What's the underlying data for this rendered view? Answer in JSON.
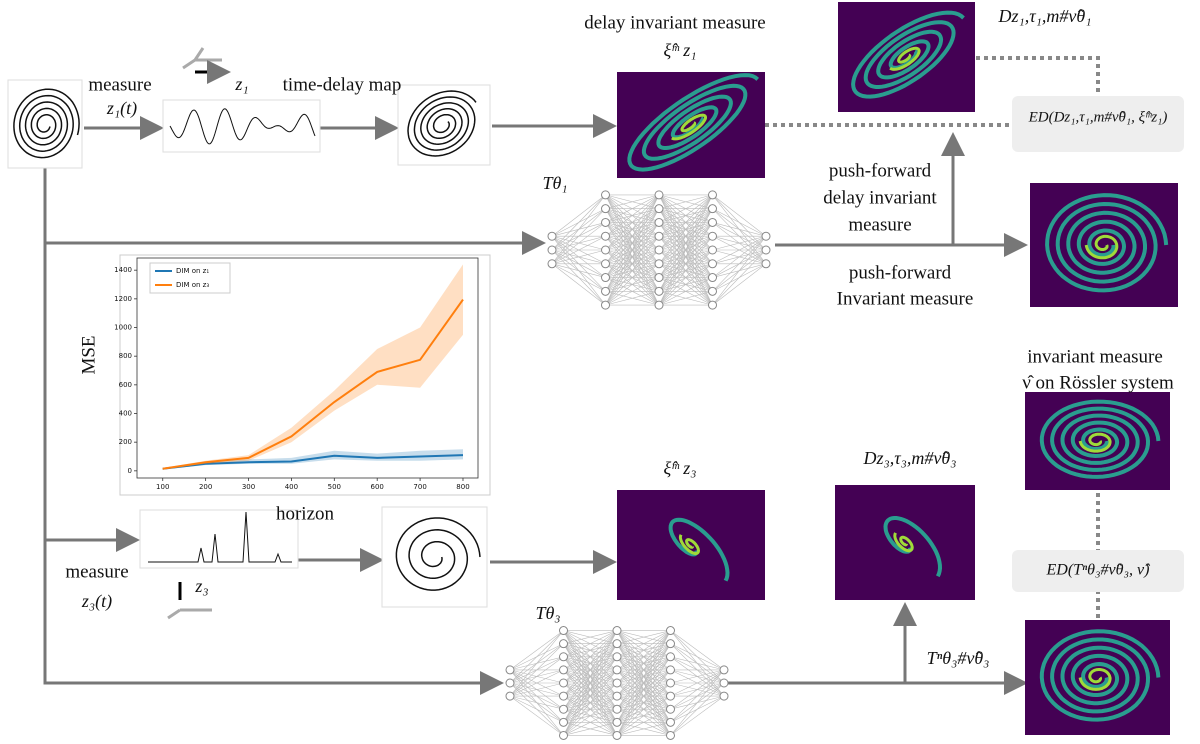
{
  "labels": {
    "measure_z1": "measure",
    "z1_t": "z₁(t)",
    "z1_axis": "z₁",
    "time_delay_map": "time-delay map",
    "delay_invariant_measure": "delay invariant measure",
    "xi_z1": "ξ̂ᵐ z₁",
    "pushforward_z1": "Dz₁,τ₁,m#ν̂θ₁",
    "ed_top": "ED(Dz₁,τ₁,m#ν̂θ₁, ξ̂ᵐz₁)",
    "t_theta1": "Tθ₁",
    "pf_delay_1": "push-forward",
    "pf_delay_2": "delay invariant",
    "pf_delay_3": "measure",
    "pf_inv_1": "push-forward",
    "pf_inv_2": "Invariant measure",
    "inv_measure_1": "invariant measure",
    "inv_measure_2": "ν̂ on Rössler system",
    "xi_z3": "ξ̂ᵐ z₃",
    "pushforward_z3": "Dz₃,τ₃,m#ν̂θ₃",
    "ed_bottom": "ED(Tⁿθ₃#ν̂θ₃, ν̂)",
    "measure_z3": "measure",
    "z3_t": "z₃(t)",
    "z3_axis": "z₃",
    "t_theta3": "Tθ₃",
    "tn_theta3": "Tⁿθ₃#ν̂θ₃"
  },
  "chart_data": {
    "type": "line",
    "ylabel": "MSE",
    "xlabel": "horizon",
    "x": [
      100,
      200,
      300,
      400,
      500,
      600,
      700,
      800
    ],
    "series": [
      {
        "name": "DIM on z₁",
        "color": "#1f77b4",
        "values": [
          15,
          50,
          60,
          65,
          105,
          90,
          100,
          110
        ],
        "lower": [
          10,
          40,
          50,
          50,
          80,
          70,
          70,
          80
        ],
        "upper": [
          20,
          60,
          80,
          90,
          140,
          120,
          140,
          150
        ]
      },
      {
        "name": "DIM on z₃",
        "color": "#ff7f0e",
        "values": [
          15,
          60,
          90,
          240,
          480,
          690,
          775,
          1195
        ],
        "lower": [
          10,
          50,
          70,
          200,
          420,
          600,
          580,
          950
        ],
        "upper": [
          20,
          70,
          110,
          300,
          560,
          850,
          1000,
          1440
        ]
      }
    ],
    "xlim": [
      40,
      835
    ],
    "ylim": [
      -50,
      1485
    ],
    "xticks": [
      100,
      200,
      300,
      400,
      500,
      600,
      700,
      800
    ],
    "yticks": [
      0,
      200,
      400,
      600,
      800,
      1000,
      1200,
      1400
    ]
  }
}
